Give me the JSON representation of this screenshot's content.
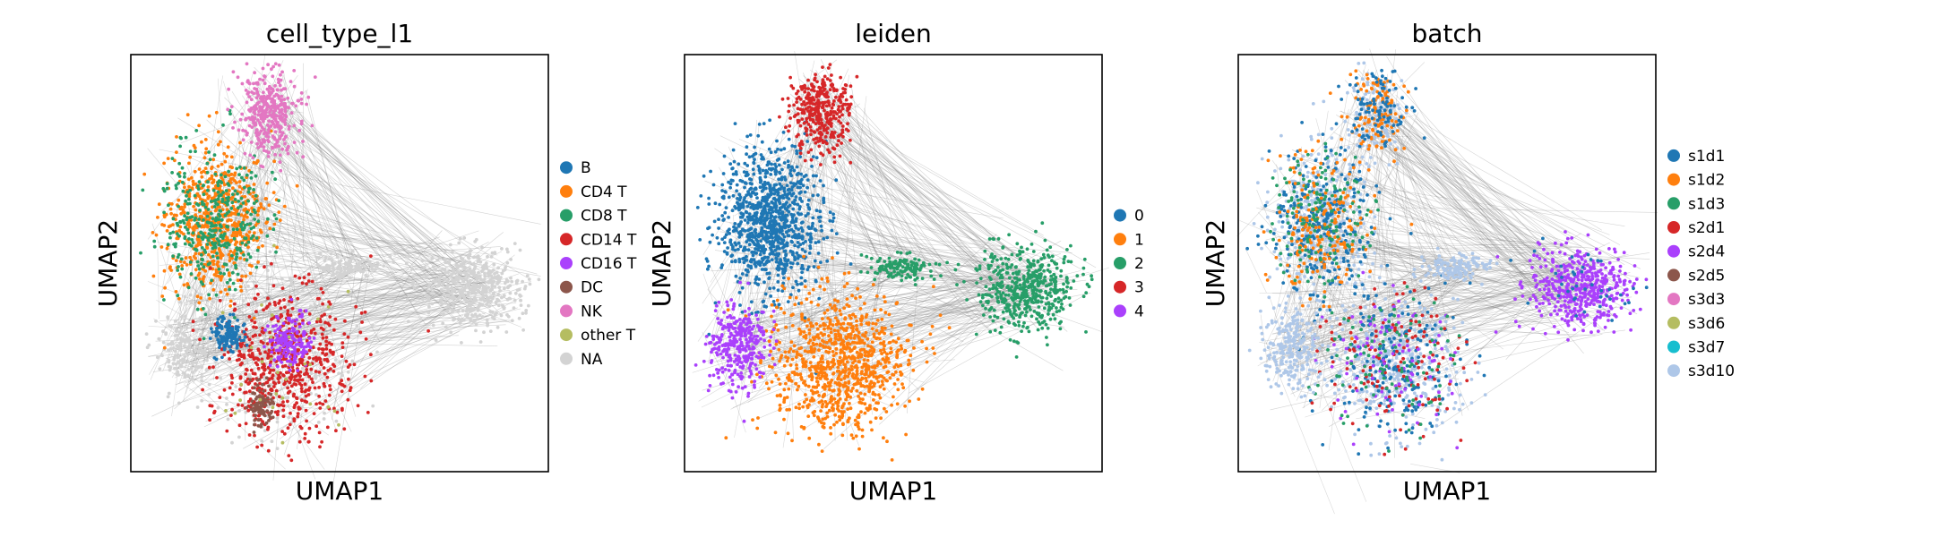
{
  "figure": {
    "background": "#ffffff"
  },
  "chart_data": [
    {
      "type": "scatter",
      "title": "cell_type_l1",
      "xlabel": "UMAP1",
      "ylabel": "UMAP2",
      "grid": false,
      "legend_placement": "right",
      "legend": [
        {
          "name": "B",
          "color": "#1f77b4"
        },
        {
          "name": "CD4 T",
          "color": "#ff7f0e"
        },
        {
          "name": "CD8 T",
          "color": "#279e68"
        },
        {
          "name": "CD14 T",
          "color": "#d62728"
        },
        {
          "name": "CD16 T",
          "color": "#aa40fc"
        },
        {
          "name": "DC",
          "color": "#8c564b"
        },
        {
          "name": "NK",
          "color": "#e377c2"
        },
        {
          "name": "other T",
          "color": "#b5bd61"
        },
        {
          "name": "NA",
          "color": "#d3d3d3"
        }
      ]
    },
    {
      "type": "scatter",
      "title": "leiden",
      "xlabel": "UMAP1",
      "ylabel": "UMAP2",
      "grid": false,
      "legend_placement": "right",
      "legend": [
        {
          "name": "0",
          "color": "#1f77b4"
        },
        {
          "name": "1",
          "color": "#ff7f0e"
        },
        {
          "name": "2",
          "color": "#279e68"
        },
        {
          "name": "3",
          "color": "#d62728"
        },
        {
          "name": "4",
          "color": "#aa40fc"
        }
      ]
    },
    {
      "type": "scatter",
      "title": "batch",
      "xlabel": "UMAP1",
      "ylabel": "UMAP2",
      "grid": false,
      "legend_placement": "right",
      "legend": [
        {
          "name": "s1d1",
          "color": "#1f77b4"
        },
        {
          "name": "s1d2",
          "color": "#ff7f0e"
        },
        {
          "name": "s1d3",
          "color": "#279e68"
        },
        {
          "name": "s2d1",
          "color": "#d62728"
        },
        {
          "name": "s2d4",
          "color": "#aa40fc"
        },
        {
          "name": "s2d5",
          "color": "#8c564b"
        },
        {
          "name": "s3d3",
          "color": "#e377c2"
        },
        {
          "name": "s3d6",
          "color": "#b5bd61"
        },
        {
          "name": "s3d7",
          "color": "#17becf"
        },
        {
          "name": "s3d10",
          "color": "#aec7e8"
        }
      ]
    }
  ]
}
